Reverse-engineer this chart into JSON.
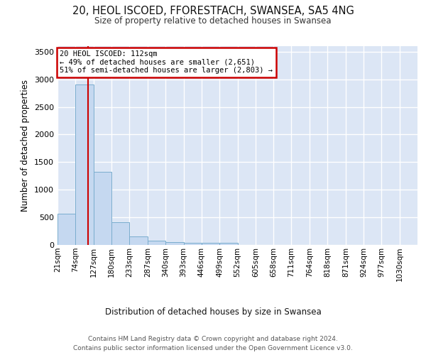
{
  "title_line1": "20, HEOL ISCOED, FFORESTFACH, SWANSEA, SA5 4NG",
  "title_line2": "Size of property relative to detached houses in Swansea",
  "xlabel": "Distribution of detached houses by size in Swansea",
  "ylabel": "Number of detached properties",
  "footer_line1": "Contains HM Land Registry data © Crown copyright and database right 2024.",
  "footer_line2": "Contains public sector information licensed under the Open Government Licence v3.0.",
  "annotation_line1": "20 HEOL ISCOED: 112sqm",
  "annotation_line2": "← 49% of detached houses are smaller (2,651)",
  "annotation_line3": "51% of semi-detached houses are larger (2,803) →",
  "bar_edges": [
    21,
    74,
    127,
    180,
    233,
    287,
    340,
    393,
    446,
    499,
    552,
    605,
    658,
    711,
    764,
    818,
    871,
    924,
    977,
    1030,
    1083
  ],
  "bar_values": [
    560,
    2900,
    1320,
    410,
    155,
    80,
    55,
    45,
    35,
    35,
    0,
    0,
    0,
    0,
    0,
    0,
    0,
    0,
    0,
    0
  ],
  "bar_color": "#c5d8f0",
  "bar_edge_color": "#7aadce",
  "vline_color": "#cc0000",
  "vline_x": 112,
  "annotation_edge_color": "#cc0000",
  "background_color": "#dce6f5",
  "grid_color": "#ffffff",
  "ylim_max": 3600,
  "yticks": [
    0,
    500,
    1000,
    1500,
    2000,
    2500,
    3000,
    3500
  ]
}
